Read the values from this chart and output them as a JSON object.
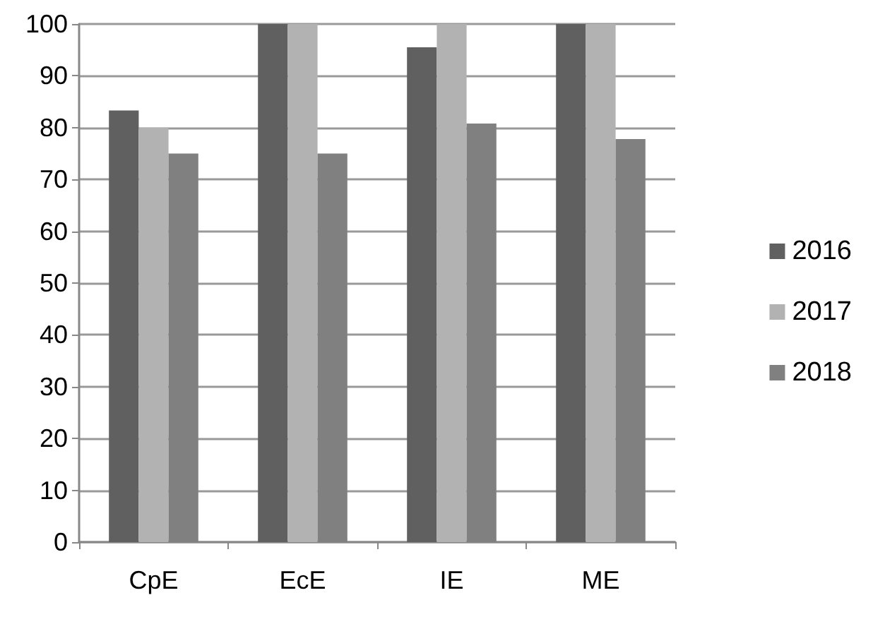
{
  "chart_data": {
    "type": "bar",
    "categories": [
      "CpE",
      "EcE",
      "IE",
      "ME"
    ],
    "series": [
      {
        "name": "2016",
        "color": "#606060",
        "values": [
          83.3,
          100,
          95.5,
          100
        ]
      },
      {
        "name": "2017",
        "color": "#b2b2b2",
        "values": [
          80,
          100,
          100,
          100
        ]
      },
      {
        "name": "2018",
        "color": "#808080",
        "values": [
          75,
          75,
          80.8,
          77.8
        ]
      }
    ],
    "ylim": [
      0,
      100
    ],
    "yticks": [
      0,
      10,
      20,
      30,
      40,
      50,
      60,
      70,
      80,
      90,
      100
    ],
    "grid": "y",
    "legend": "right"
  }
}
